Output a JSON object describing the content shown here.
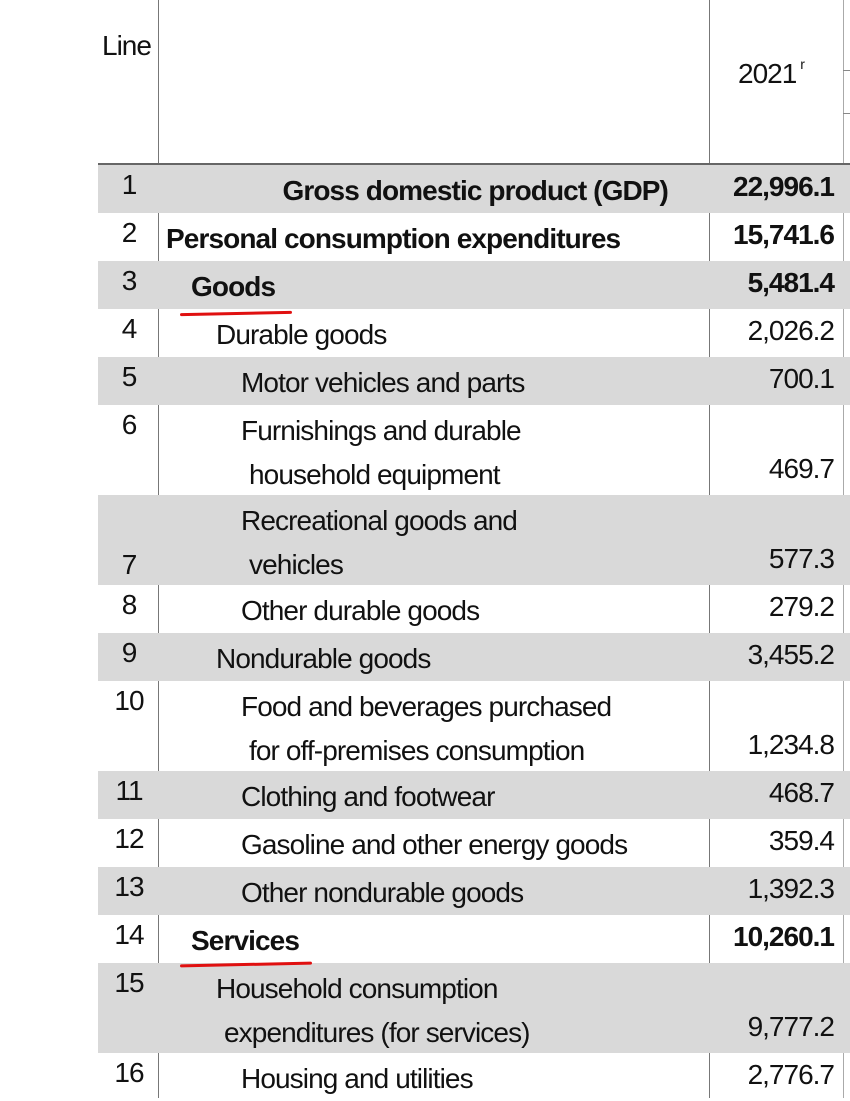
{
  "header": {
    "line_label": "Line",
    "year": "2021",
    "year_note": "r"
  },
  "rows": [
    {
      "line": "1",
      "label": [
        "Gross domestic product (GDP)"
      ],
      "value": "22,996.1",
      "level": 0,
      "bold": true
    },
    {
      "line": "2",
      "label": [
        "Personal consumption expenditures"
      ],
      "value": "15,741.6",
      "level": 0,
      "bold": true
    },
    {
      "line": "3",
      "label": [
        "Goods"
      ],
      "value": "5,481.4",
      "level": 1,
      "bold": true,
      "underlined": true
    },
    {
      "line": "4",
      "label": [
        "Durable goods"
      ],
      "value": "2,026.2",
      "level": 2,
      "bold": false
    },
    {
      "line": "5",
      "label": [
        "Motor vehicles and parts"
      ],
      "value": "700.1",
      "level": 3,
      "bold": false
    },
    {
      "line": "6",
      "label": [
        "Furnishings and durable",
        "household equipment"
      ],
      "value": "469.7",
      "level": 3,
      "bold": false
    },
    {
      "line": "7",
      "label": [
        "Recreational goods and",
        "vehicles"
      ],
      "value": "577.3",
      "level": 3,
      "bold": false
    },
    {
      "line": "8",
      "label": [
        "Other durable goods"
      ],
      "value": "279.2",
      "level": 3,
      "bold": false
    },
    {
      "line": "9",
      "label": [
        "Nondurable goods"
      ],
      "value": "3,455.2",
      "level": 2,
      "bold": false
    },
    {
      "line": "10",
      "label": [
        "Food and beverages purchased",
        "for off-premises consumption"
      ],
      "value": "1,234.8",
      "level": 3,
      "bold": false
    },
    {
      "line": "11",
      "label": [
        "Clothing and footwear"
      ],
      "value": "468.7",
      "level": 3,
      "bold": false
    },
    {
      "line": "12",
      "label": [
        "Gasoline and other energy goods"
      ],
      "value": "359.4",
      "level": 3,
      "bold": false
    },
    {
      "line": "13",
      "label": [
        "Other nondurable goods"
      ],
      "value": "1,392.3",
      "level": 3,
      "bold": false
    },
    {
      "line": "14",
      "label": [
        "Services"
      ],
      "value": "10,260.1",
      "level": 1,
      "bold": true,
      "underlined": true
    },
    {
      "line": "15",
      "label": [
        "Household consumption",
        "expenditures (for services)"
      ],
      "value": "9,777.2",
      "level": 2,
      "bold": false
    },
    {
      "line": "16",
      "label": [
        "Housing and utilities"
      ],
      "value": "2,776.7",
      "level": 3,
      "bold": false
    }
  ]
}
